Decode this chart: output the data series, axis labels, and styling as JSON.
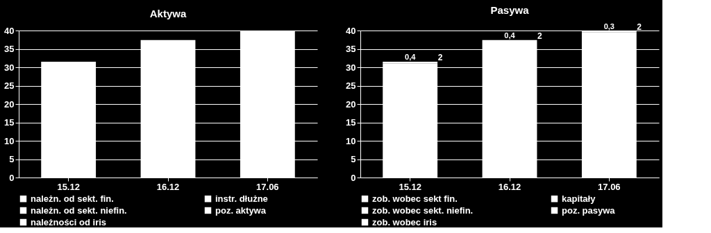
{
  "chart_data": [
    {
      "type": "bar",
      "title": "Aktywa",
      "stacked": true,
      "categories": [
        "15.12",
        "16.12",
        "17.06"
      ],
      "ylim": [
        0,
        40
      ],
      "yticks": [
        0,
        5,
        10,
        15,
        20,
        25,
        30,
        35,
        40
      ],
      "grid": "y",
      "legend": "bottom",
      "series": [
        {
          "name": "należn. od sekt. fin.",
          "color": "#ffffff",
          "values": [
            31.5,
            37.4,
            39.8
          ]
        },
        {
          "name": "należn. od sekt. niefin.",
          "color": "#ffffff",
          "values": [
            null,
            null,
            null
          ]
        },
        {
          "name": "należności od iris",
          "color": "#ffffff",
          "values": [
            null,
            null,
            null
          ]
        },
        {
          "name": "instr. dłużne",
          "color": "#ffffff",
          "values": [
            null,
            null,
            null
          ]
        },
        {
          "name": "poz. aktywa",
          "color": "#ffffff",
          "values": [
            null,
            null,
            null
          ]
        }
      ]
    },
    {
      "type": "bar",
      "title": "Pasywa",
      "stacked": true,
      "categories": [
        "15.12",
        "16.12",
        "17.06"
      ],
      "ylim": [
        0,
        40
      ],
      "yticks": [
        0,
        5,
        10,
        15,
        20,
        25,
        30,
        35,
        40
      ],
      "grid": "y",
      "legend": "bottom",
      "series": [
        {
          "name": "zob. wobec sekt fin.",
          "color": "#ffffff",
          "values": [
            31.1,
            37.0,
            39.5
          ]
        },
        {
          "name": "zob. wobec sekt. niefin.",
          "color": "#ffffff",
          "values": [
            null,
            null,
            null
          ]
        },
        {
          "name": "zob. wobec iris",
          "color": "#ffffff",
          "values": [
            null,
            null,
            null
          ]
        },
        {
          "name": "kapitały",
          "color": "#ffffff",
          "values": [
            null,
            null,
            null
          ]
        },
        {
          "name": "poz. pasywa",
          "color": "#ffffff",
          "values": [
            0.4,
            0.4,
            0.3
          ],
          "value_labels": [
            "0,4",
            "0,4",
            "0,3"
          ]
        }
      ],
      "annotations": [
        "2",
        "2",
        "2"
      ]
    }
  ]
}
